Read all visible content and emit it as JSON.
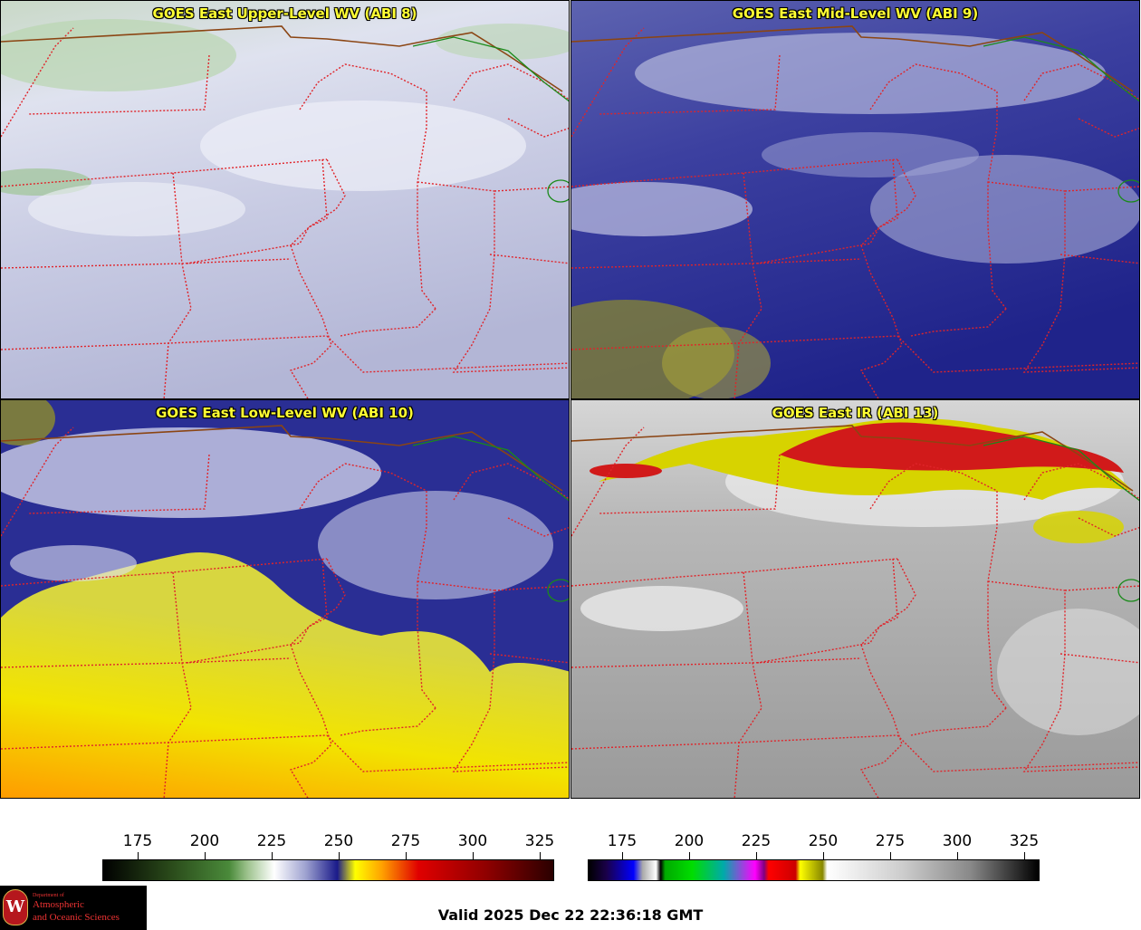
{
  "panels": [
    {
      "title": "GOES East Upper-Level WV (ABI 8)",
      "band": "upper"
    },
    {
      "title": "GOES East Mid-Level WV (ABI 9)",
      "band": "mid"
    },
    {
      "title": "GOES East Low-Level WV (ABI 10)",
      "band": "low"
    },
    {
      "title": "GOES East IR (ABI 13)",
      "band": "ir"
    }
  ],
  "colorbars": {
    "wv": {
      "ticks": [
        "175",
        "200",
        "225",
        "250",
        "275",
        "300",
        "325"
      ]
    },
    "ir": {
      "ticks": [
        "175",
        "200",
        "225",
        "250",
        "275",
        "300",
        "325"
      ]
    }
  },
  "logo": {
    "line1": "Department of",
    "line2": "Atmospheric",
    "line3": "and Oceanic Sciences",
    "seal": "W"
  },
  "footer": {
    "valid": "Valid 2025 Dec 22 22:36:18 GMT"
  },
  "colors": {
    "state_border": "#e0242a",
    "intl_border": "#8b4513",
    "canal": "#1a8a1a",
    "title": "#ffff33"
  }
}
